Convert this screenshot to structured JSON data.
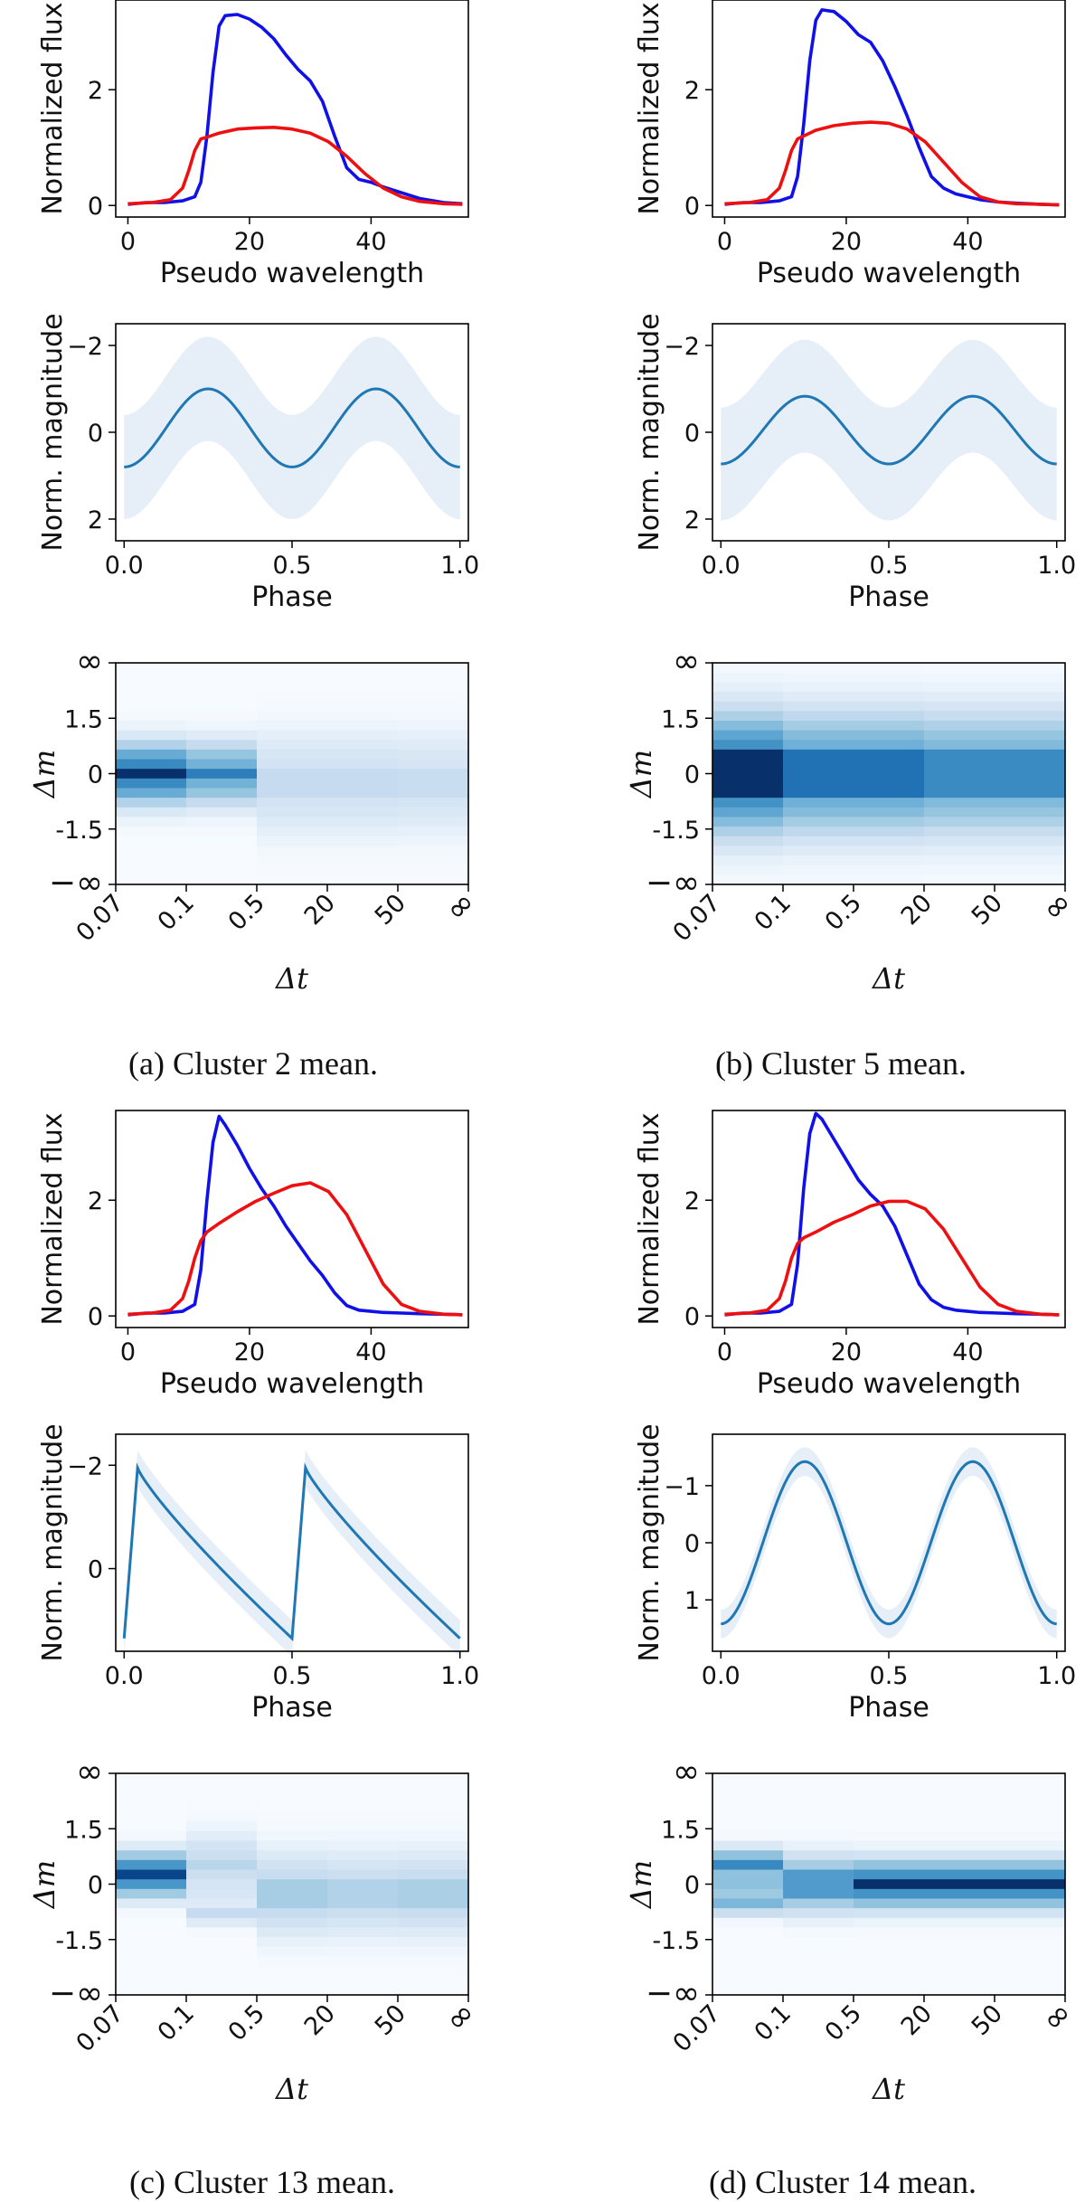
{
  "figure": {
    "panels": [
      {
        "id": "a",
        "caption": "(a) Cluster 2 mean."
      },
      {
        "id": "b",
        "caption": "(b) Cluster 5 mean."
      },
      {
        "id": "c",
        "caption": "(c) Cluster 13 mean."
      },
      {
        "id": "d",
        "caption": "(d) Cluster 14 mean."
      }
    ]
  },
  "colors": {
    "blue_curve": "#1010e8",
    "red_curve": "#ee1010",
    "phase_line": "#1f77b4",
    "phase_band": "#e6eef8",
    "heat_low": "#f7fbff",
    "heat_high": "#08306b"
  },
  "chart_data": [
    {
      "panel": "a",
      "kind": "flux",
      "type": "line",
      "xlabel": "Pseudo wavelength",
      "ylabel": "Normalized flux",
      "xlim": [
        -2,
        56
      ],
      "ylim": [
        -0.2,
        3.55
      ],
      "xticks": [
        0,
        20,
        40
      ],
      "yticks": [
        0,
        2
      ],
      "series": [
        {
          "name": "blue",
          "color": "#1010e8",
          "x": [
            0,
            3,
            6,
            9,
            11,
            12,
            13,
            14,
            15,
            16,
            18,
            20,
            22,
            24,
            26,
            28,
            30,
            32,
            34,
            36,
            38,
            40,
            42,
            45,
            48,
            52,
            55
          ],
          "y": [
            0.02,
            0.05,
            0.05,
            0.08,
            0.15,
            0.4,
            1.2,
            2.3,
            3.1,
            3.28,
            3.3,
            3.22,
            3.08,
            2.88,
            2.6,
            2.35,
            2.15,
            1.8,
            1.2,
            0.65,
            0.45,
            0.4,
            0.32,
            0.22,
            0.12,
            0.05,
            0.03
          ]
        },
        {
          "name": "red",
          "color": "#ee1010",
          "x": [
            0,
            4,
            7,
            9,
            10,
            11,
            12,
            13,
            15,
            18,
            21,
            24,
            27,
            30,
            33,
            36,
            39,
            42,
            45,
            48,
            52,
            55
          ],
          "y": [
            0.03,
            0.05,
            0.1,
            0.3,
            0.6,
            0.95,
            1.15,
            1.18,
            1.25,
            1.32,
            1.34,
            1.35,
            1.32,
            1.25,
            1.1,
            0.85,
            0.55,
            0.3,
            0.15,
            0.07,
            0.03,
            0.02
          ]
        }
      ]
    },
    {
      "panel": "a",
      "kind": "phase",
      "type": "line",
      "xlabel": "Phase",
      "ylabel": "Norm. magnitude",
      "xlim": [
        -0.025,
        1.025
      ],
      "ylim": [
        2.5,
        -2.5
      ],
      "xticks": [
        0.0,
        0.5,
        1.0
      ],
      "xtick_labels": [
        "0.0",
        "0.5",
        "1.0"
      ],
      "yticks": [
        -2,
        0,
        2
      ],
      "yticks_labels": [
        "−2",
        "0",
        "2"
      ],
      "model": {
        "form": "cos",
        "mean": -0.1,
        "amp": 0.9,
        "band": 1.2
      }
    },
    {
      "panel": "a",
      "kind": "dmdt",
      "type": "heatmap",
      "xlabel": "Δt",
      "ylabel": "Δm",
      "xtick_labels": [
        "0.07",
        "0.1",
        "0.5",
        "20",
        "50",
        "∞"
      ],
      "ytick_labels": [
        "∞",
        "1.5",
        "0",
        "-1.5",
        "−∞"
      ],
      "n_rows": 23,
      "columns": [
        {
          "center": 11,
          "peak": 1.0,
          "core": 1.5,
          "halo": 6
        },
        {
          "center": 11,
          "peak": 0.78,
          "core": 1.5,
          "halo": 6
        },
        {
          "center": 12,
          "peak": 0.3,
          "core": 3,
          "halo": 9
        },
        {
          "center": 12,
          "peak": 0.3,
          "core": 3,
          "halo": 9
        },
        {
          "center": 12,
          "peak": 0.28,
          "core": 3,
          "halo": 9
        }
      ]
    },
    {
      "panel": "b",
      "kind": "flux",
      "type": "line",
      "xlabel": "Pseudo wavelength",
      "ylabel": "Normalized flux",
      "xlim": [
        -2,
        56
      ],
      "ylim": [
        -0.2,
        3.55
      ],
      "xticks": [
        0,
        20,
        40
      ],
      "yticks": [
        0,
        2
      ],
      "series": [
        {
          "name": "blue",
          "color": "#1010e8",
          "x": [
            0,
            3,
            6,
            9,
            11,
            12,
            13,
            14,
            15,
            16,
            18,
            20,
            22,
            24,
            26,
            28,
            30,
            32,
            34,
            36,
            38,
            40,
            42,
            45,
            48,
            52,
            55
          ],
          "y": [
            0.02,
            0.05,
            0.05,
            0.08,
            0.15,
            0.5,
            1.4,
            2.5,
            3.2,
            3.38,
            3.35,
            3.18,
            2.95,
            2.82,
            2.5,
            2.05,
            1.55,
            1.0,
            0.5,
            0.3,
            0.2,
            0.15,
            0.1,
            0.06,
            0.04,
            0.02,
            0.01
          ]
        },
        {
          "name": "red",
          "color": "#ee1010",
          "x": [
            0,
            4,
            7,
            9,
            10,
            11,
            12,
            13,
            15,
            18,
            21,
            24,
            27,
            30,
            33,
            36,
            39,
            42,
            45,
            48,
            52,
            55
          ],
          "y": [
            0.03,
            0.05,
            0.1,
            0.3,
            0.6,
            0.95,
            1.15,
            1.2,
            1.3,
            1.38,
            1.42,
            1.44,
            1.42,
            1.32,
            1.1,
            0.75,
            0.4,
            0.15,
            0.06,
            0.03,
            0.02,
            0.01
          ]
        }
      ]
    },
    {
      "panel": "b",
      "kind": "phase",
      "type": "line",
      "xlabel": "Phase",
      "ylabel": "Norm. magnitude",
      "xlim": [
        -0.025,
        1.025
      ],
      "ylim": [
        2.5,
        -2.5
      ],
      "xticks": [
        0.0,
        0.5,
        1.0
      ],
      "xtick_labels": [
        "0.0",
        "0.5",
        "1.0"
      ],
      "yticks": [
        -2,
        0,
        2
      ],
      "yticks_labels": [
        "−2",
        "0",
        "2"
      ],
      "model": {
        "form": "cos",
        "mean": -0.05,
        "amp": 0.78,
        "band": 1.3
      }
    },
    {
      "panel": "b",
      "kind": "dmdt",
      "type": "heatmap",
      "xlabel": "Δt",
      "ylabel": "Δm",
      "xtick_labels": [
        "0.07",
        "0.1",
        "0.5",
        "20",
        "50",
        "∞"
      ],
      "ytick_labels": [
        "∞",
        "1.5",
        "0",
        "-1.5",
        "−∞"
      ],
      "n_rows": 23,
      "columns": [
        {
          "center": 11,
          "peak": 1.0,
          "core": 4,
          "halo": 11
        },
        {
          "center": 11,
          "peak": 0.82,
          "core": 4,
          "halo": 11
        },
        {
          "center": 11,
          "peak": 0.82,
          "core": 4,
          "halo": 11
        },
        {
          "center": 11,
          "peak": 0.74,
          "core": 4,
          "halo": 11
        },
        {
          "center": 11,
          "peak": 0.74,
          "core": 4,
          "halo": 11
        }
      ]
    },
    {
      "panel": "c",
      "kind": "flux",
      "type": "line",
      "xlabel": "Pseudo wavelength",
      "ylabel": "Normalized flux",
      "xlim": [
        -2,
        56
      ],
      "ylim": [
        -0.2,
        3.55
      ],
      "xticks": [
        0,
        20,
        40
      ],
      "yticks": [
        0,
        2
      ],
      "series": [
        {
          "name": "blue",
          "color": "#1010e8",
          "x": [
            0,
            3,
            6,
            9,
            11,
            12,
            13,
            14,
            15,
            16,
            18,
            20,
            22,
            24,
            26,
            28,
            30,
            32,
            34,
            36,
            38,
            40,
            42,
            45,
            48,
            52,
            55
          ],
          "y": [
            0.02,
            0.05,
            0.05,
            0.08,
            0.2,
            0.8,
            2.0,
            3.0,
            3.45,
            3.3,
            2.95,
            2.55,
            2.2,
            1.9,
            1.55,
            1.25,
            0.95,
            0.7,
            0.4,
            0.18,
            0.1,
            0.08,
            0.06,
            0.05,
            0.04,
            0.03,
            0.02
          ]
        },
        {
          "name": "red",
          "color": "#ee1010",
          "x": [
            0,
            4,
            7,
            9,
            10,
            11,
            12,
            13,
            15,
            18,
            21,
            24,
            27,
            30,
            33,
            36,
            39,
            42,
            45,
            48,
            52,
            55
          ],
          "y": [
            0.03,
            0.05,
            0.1,
            0.3,
            0.6,
            1.0,
            1.3,
            1.45,
            1.6,
            1.8,
            1.98,
            2.12,
            2.25,
            2.3,
            2.15,
            1.75,
            1.15,
            0.55,
            0.2,
            0.08,
            0.03,
            0.02
          ]
        }
      ]
    },
    {
      "panel": "c",
      "kind": "phase",
      "type": "line",
      "xlabel": "Phase",
      "ylabel": "Norm. magnitude",
      "xlim": [
        -0.025,
        1.025
      ],
      "ylim": [
        1.6,
        -2.6
      ],
      "xticks": [
        0.0,
        0.5,
        1.0
      ],
      "xtick_labels": [
        "0.0",
        "0.5",
        "1.0"
      ],
      "yticks": [
        -2,
        0
      ],
      "yticks_labels": [
        "−2",
        "0"
      ],
      "model": {
        "form": "sawtooth",
        "mean": -0.3,
        "amp": 1.65,
        "band": 0.35
      }
    },
    {
      "panel": "c",
      "kind": "dmdt",
      "type": "heatmap",
      "xlabel": "Δt",
      "ylabel": "Δm",
      "xtick_labels": [
        "0.07",
        "0.1",
        "0.5",
        "20",
        "50",
        "∞"
      ],
      "ytick_labels": [
        "∞",
        "1.5",
        "0",
        "-1.5",
        "−∞"
      ],
      "n_rows": 23,
      "columns": [
        {
          "center": 10,
          "peak": 0.95,
          "core": 1.5,
          "halo": 4,
          "extra": [
            [
              12,
              0.3
            ]
          ]
        },
        {
          "center": 9,
          "peak": 0.35,
          "core": 1.5,
          "halo": 6,
          "extra": [
            [
              14,
              0.3
            ],
            [
              12,
              0.2
            ]
          ]
        },
        {
          "center": 12,
          "peak": 0.42,
          "core": 2,
          "halo": 8
        },
        {
          "center": 12,
          "peak": 0.38,
          "core": 2,
          "halo": 8
        },
        {
          "center": 12,
          "peak": 0.4,
          "core": 2,
          "halo": 8
        }
      ]
    },
    {
      "panel": "d",
      "kind": "flux",
      "type": "line",
      "xlabel": "Pseudo wavelength",
      "ylabel": "Normalized flux",
      "xlim": [
        -2,
        56
      ],
      "ylim": [
        -0.2,
        3.55
      ],
      "xticks": [
        0,
        20,
        40
      ],
      "yticks": [
        0,
        2
      ],
      "series": [
        {
          "name": "blue",
          "color": "#1010e8",
          "x": [
            0,
            3,
            6,
            9,
            11,
            12,
            13,
            14,
            15,
            16,
            18,
            20,
            22,
            24,
            26,
            28,
            30,
            32,
            34,
            36,
            38,
            40,
            42,
            45,
            48,
            52,
            55
          ],
          "y": [
            0.02,
            0.05,
            0.05,
            0.08,
            0.2,
            0.9,
            2.2,
            3.15,
            3.5,
            3.4,
            3.05,
            2.7,
            2.35,
            2.1,
            1.9,
            1.55,
            1.05,
            0.55,
            0.28,
            0.15,
            0.1,
            0.08,
            0.06,
            0.05,
            0.04,
            0.03,
            0.02
          ]
        },
        {
          "name": "red",
          "color": "#ee1010",
          "x": [
            0,
            4,
            7,
            9,
            10,
            11,
            12,
            13,
            15,
            18,
            21,
            24,
            27,
            30,
            33,
            36,
            39,
            42,
            45,
            48,
            52,
            55
          ],
          "y": [
            0.03,
            0.05,
            0.1,
            0.3,
            0.6,
            1.0,
            1.25,
            1.35,
            1.45,
            1.62,
            1.75,
            1.9,
            1.98,
            1.98,
            1.85,
            1.5,
            1.0,
            0.5,
            0.2,
            0.08,
            0.03,
            0.02
          ]
        }
      ]
    },
    {
      "panel": "d",
      "kind": "phase",
      "type": "line",
      "xlabel": "Phase",
      "ylabel": "Norm. magnitude",
      "xlim": [
        -0.025,
        1.025
      ],
      "ylim": [
        1.9,
        -1.9
      ],
      "xticks": [
        0.0,
        0.5,
        1.0
      ],
      "xtick_labels": [
        "0.0",
        "0.5",
        "1.0"
      ],
      "yticks": [
        -1,
        0,
        1
      ],
      "yticks_labels": [
        "−1",
        "0",
        "1"
      ],
      "model": {
        "form": "cos",
        "mean": 0.0,
        "amp": 1.42,
        "band": 0.25
      }
    },
    {
      "panel": "d",
      "kind": "dmdt",
      "type": "heatmap",
      "xlabel": "Δt",
      "ylabel": "Δm",
      "xtick_labels": [
        "0.07",
        "0.1",
        "0.5",
        "20",
        "50",
        "∞"
      ],
      "ytick_labels": [
        "∞",
        "1.5",
        "0",
        "-1.5",
        "−∞"
      ],
      "n_rows": 23,
      "columns": [
        {
          "center": 9,
          "peak": 0.75,
          "core": 1,
          "halo": 3,
          "extra": [
            [
              11,
              0.5
            ],
            [
              13,
              0.55
            ],
            [
              12,
              0.45
            ]
          ]
        },
        {
          "center": 11,
          "peak": 0.68,
          "core": 2,
          "halo": 5
        },
        {
          "center": 11,
          "peak": 1.0,
          "core": 1,
          "halo": 5
        },
        {
          "center": 11,
          "peak": 1.0,
          "core": 1,
          "halo": 5
        },
        {
          "center": 11,
          "peak": 1.0,
          "core": 1,
          "halo": 5
        }
      ]
    }
  ]
}
